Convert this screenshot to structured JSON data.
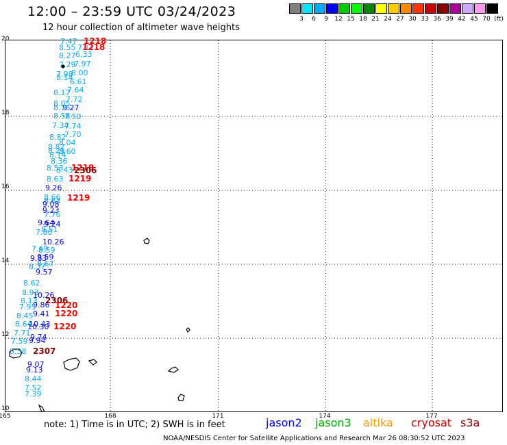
{
  "title": "12:00 – 23:59 UTC 03/24/2023",
  "subtitle": "12 hour collection of altimeter wave heights",
  "colorbar": {
    "colors": [
      "#808080",
      "#00e5ff",
      "#00aaff",
      "#0000ff",
      "#00cc00",
      "#00ff00",
      "#008800",
      "#ffff00",
      "#ffcc00",
      "#ff8800",
      "#ff3300",
      "#cc0000",
      "#880000",
      "#aa0099",
      "#ccaaff",
      "#ff99ee",
      "#000000"
    ],
    "labels": [
      "3",
      "6",
      "9",
      "12",
      "15",
      "18",
      "21",
      "24",
      "27",
      "30",
      "33",
      "36",
      "39",
      "42",
      "45",
      "70",
      "(ft)"
    ]
  },
  "axes": {
    "lat_labels": [
      "20",
      "18",
      "16",
      "14",
      "12",
      "10"
    ],
    "lon_labels": [
      "165",
      "168",
      "171",
      "174",
      "177"
    ]
  },
  "observations": [
    {
      "v": "7.47",
      "c": "#00aaff"
    },
    {
      "v": "8.55",
      "c": "#00aaff"
    },
    {
      "v": "7.12",
      "c": "#00aaff"
    },
    {
      "v": "8.27",
      "c": "#00aaff"
    },
    {
      "v": "6.33",
      "c": "#00aaff"
    },
    {
      "v": "7.29",
      "c": "#00aaff"
    },
    {
      "v": "7.97",
      "c": "#00aaff"
    },
    {
      "v": "8.14",
      "c": "#00aaff"
    },
    {
      "v": "7.98",
      "c": "#00aaff"
    },
    {
      "v": "8.00",
      "c": "#00aaff"
    },
    {
      "v": "6.61",
      "c": "#00aaff"
    },
    {
      "v": "7.64",
      "c": "#00aaff"
    },
    {
      "v": "8.17",
      "c": "#00aaff"
    },
    {
      "v": "7.72",
      "c": "#00aaff"
    },
    {
      "v": "8.05",
      "c": "#00aaff"
    },
    {
      "v": "9.27",
      "c": "#0000ff"
    },
    {
      "v": "8.76",
      "c": "#00aaff"
    },
    {
      "v": "8.58",
      "c": "#00aaff"
    },
    {
      "v": "7.50",
      "c": "#00aaff"
    },
    {
      "v": "7.34",
      "c": "#00aaff"
    },
    {
      "v": "7.74",
      "c": "#00aaff"
    },
    {
      "v": "7.70",
      "c": "#00aaff"
    },
    {
      "v": "8.82",
      "c": "#00aaff"
    },
    {
      "v": "8.04",
      "c": "#00aaff"
    },
    {
      "v": "8.82",
      "c": "#00aaff"
    },
    {
      "v": "8.29",
      "c": "#00aaff"
    },
    {
      "v": "8.60",
      "c": "#00aaff"
    },
    {
      "v": "8.14",
      "c": "#00aaff"
    },
    {
      "v": "8.36",
      "c": "#00aaff"
    },
    {
      "v": "8.53",
      "c": "#00aaff"
    },
    {
      "v": "8.43",
      "c": "#00aaff"
    },
    {
      "v": "8.63",
      "c": "#00aaff"
    },
    {
      "v": "9.26",
      "c": "#0000ff"
    },
    {
      "v": "8.66",
      "c": "#00aaff"
    },
    {
      "v": "8.63",
      "c": "#00aaff"
    },
    {
      "v": "9.08",
      "c": "#0000ff"
    },
    {
      "v": "9.23",
      "c": "#0000ff"
    },
    {
      "v": "7.76",
      "c": "#00aaff"
    },
    {
      "v": "9.64",
      "c": "#0000ff"
    },
    {
      "v": "9.24",
      "c": "#0000ff"
    },
    {
      "v": "8.51",
      "c": "#00aaff"
    },
    {
      "v": "7.80",
      "c": "#00aaff"
    },
    {
      "v": "10.26",
      "c": "#0000ff"
    },
    {
      "v": "7.69",
      "c": "#00aaff"
    },
    {
      "v": "8.59",
      "c": "#00aaff"
    },
    {
      "v": "9.59",
      "c": "#0000ff"
    },
    {
      "v": "9.83",
      "c": "#0000ff"
    },
    {
      "v": "8.67",
      "c": "#00aaff"
    },
    {
      "v": "8.37",
      "c": "#00aaff"
    },
    {
      "v": "9.57",
      "c": "#0000ff"
    },
    {
      "v": "8.62",
      "c": "#00aaff"
    },
    {
      "v": "8.93",
      "c": "#00aaff"
    },
    {
      "v": "10.26",
      "c": "#0000ff"
    },
    {
      "v": "8.13",
      "c": "#00aaff"
    },
    {
      "v": "9.86",
      "c": "#0000ff"
    },
    {
      "v": "7.95",
      "c": "#00aaff"
    },
    {
      "v": "9.41",
      "c": "#0000ff"
    },
    {
      "v": "8.45",
      "c": "#00aaff"
    },
    {
      "v": "8.64",
      "c": "#00aaff"
    },
    {
      "v": "10.43",
      "c": "#0000ff"
    },
    {
      "v": "10.30",
      "c": "#0000ff"
    },
    {
      "v": "7.71",
      "c": "#00aaff"
    },
    {
      "v": "9.74",
      "c": "#0000ff"
    },
    {
      "v": "7.59",
      "c": "#00aaff"
    },
    {
      "v": "9.94",
      "c": "#0000ff"
    },
    {
      "v": "8.58",
      "c": "#00aaff"
    },
    {
      "v": "9.07",
      "c": "#0000ff"
    },
    {
      "v": "9.13",
      "c": "#0000ff"
    },
    {
      "v": "8.44",
      "c": "#00aaff"
    },
    {
      "v": "7.52",
      "c": "#00aaff"
    },
    {
      "v": "7.39",
      "c": "#00aaff"
    }
  ],
  "pass_times": [
    {
      "t": "1218",
      "c": "#ff0000"
    },
    {
      "t": "1218",
      "c": "#ff0000"
    },
    {
      "t": "1219",
      "c": "#ff0000"
    },
    {
      "t": "2306",
      "c": "#880000"
    },
    {
      "t": "1219",
      "c": "#ff0000"
    },
    {
      "t": "1219",
      "c": "#ff0000"
    },
    {
      "t": "2306",
      "c": "#880000"
    },
    {
      "t": "1220",
      "c": "#ff0000"
    },
    {
      "t": "1220",
      "c": "#ff0000"
    },
    {
      "t": "1220",
      "c": "#ff0000"
    },
    {
      "t": "2307",
      "c": "#880000"
    }
  ],
  "note": "note: 1) Time is in UTC; 2) SWH is in feet",
  "satellites": [
    {
      "name": "jason2",
      "color": "#0000ff"
    },
    {
      "name": "jason3",
      "color": "#00aa00"
    },
    {
      "name": "altika",
      "color": "#ff9900"
    },
    {
      "name": "cryosat",
      "color": "#cc0000"
    },
    {
      "name": "s3a",
      "color": "#880000"
    }
  ],
  "footer": "NOAA/NESDIS Center for Satellite Applications and Research    Mar 26 08:30:52 UTC 2023"
}
